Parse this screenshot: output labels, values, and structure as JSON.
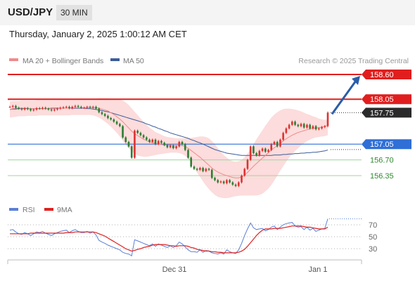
{
  "header": {
    "symbol": "USD/JPY",
    "timeframe": "30 MIN",
    "datetime": "Thursday, January 2, 2025 1:00:12 AM CET"
  },
  "legend": {
    "ma20_label": "MA 20 + Bollinger Bands",
    "ma20_color": "#f08a8a",
    "ma50_label": "MA 50",
    "ma50_color": "#3b5c9a",
    "credit": "Research © 2025 Trading Central"
  },
  "rsi_legend": {
    "rsi_label": "RSI",
    "rsi_color": "#5b7fd6",
    "ma_label": "9MA",
    "ma_color": "#e02020"
  },
  "colors": {
    "resistance": "#e01e1e",
    "support_pivot": "#2f6fd6",
    "support_green": "#2f8a2f",
    "current_price_tag": "#2b2b2b",
    "bull_candle": "#dd3333",
    "bear_candle": "#2e7d32",
    "forecast_arrow": "#2a5da8",
    "band_fill": "#fbd3d3"
  },
  "chart_data": [
    {
      "type": "candlestick",
      "x_ticks": [
        "Dec 31",
        "Jan 1"
      ],
      "ylim": [
        156.06,
        158.84
      ],
      "levels": [
        {
          "value": 158.6,
          "label": "158.60",
          "kind": "resistance"
        },
        {
          "value": 158.05,
          "label": "158.05",
          "kind": "resistance"
        },
        {
          "value": 157.75,
          "label": "157.75",
          "kind": "current"
        },
        {
          "value": 157.05,
          "label": "157.05",
          "kind": "pivot"
        },
        {
          "value": 156.7,
          "label": "156.70",
          "kind": "support"
        },
        {
          "value": 156.35,
          "label": "156.35",
          "kind": "support"
        }
      ],
      "forecast": {
        "from": 157.75,
        "to": 158.6
      },
      "close": [
        157.88,
        157.9,
        157.86,
        157.84,
        157.82,
        157.85,
        157.83,
        157.8,
        157.82,
        157.85,
        157.84,
        157.86,
        157.84,
        157.82,
        157.8,
        157.82,
        157.84,
        157.86,
        157.87,
        157.88,
        157.85,
        157.88,
        157.9,
        157.88,
        157.86,
        157.86,
        157.88,
        157.86,
        157.88,
        157.84,
        157.76,
        157.72,
        157.68,
        157.63,
        157.6,
        157.55,
        157.5,
        157.45,
        157.2,
        157.1,
        157.0,
        156.75,
        157.35,
        157.3,
        157.25,
        157.2,
        157.15,
        157.1,
        157.15,
        157.05,
        157.12,
        157.08,
        157.03,
        156.98,
        157.02,
        156.96,
        157.0,
        157.1,
        157.05,
        156.92,
        156.75,
        156.55,
        156.5,
        156.48,
        156.52,
        156.45,
        156.5,
        156.48,
        156.3,
        156.25,
        156.2,
        156.22,
        156.18,
        156.25,
        156.2,
        156.15,
        156.12,
        156.2,
        156.35,
        156.5,
        156.7,
        157.0,
        156.85,
        156.8,
        156.9,
        156.95,
        156.88,
        156.92,
        157.05,
        157.1,
        157.0,
        157.15,
        157.3,
        157.4,
        157.48,
        157.55,
        157.48,
        157.45,
        157.5,
        157.42,
        157.48,
        157.4,
        157.45,
        157.38,
        157.4,
        157.43,
        157.45,
        157.75
      ],
      "ma20": [
        157.82,
        157.84,
        157.85,
        157.85,
        157.85,
        157.85,
        157.85,
        157.84,
        157.84,
        157.84,
        157.84,
        157.84,
        157.84,
        157.84,
        157.84,
        157.84,
        157.84,
        157.85,
        157.85,
        157.85,
        157.85,
        157.86,
        157.86,
        157.86,
        157.86,
        157.86,
        157.87,
        157.87,
        157.87,
        157.86,
        157.85,
        157.83,
        157.81,
        157.79,
        157.75,
        157.71,
        157.66,
        157.61,
        157.55,
        157.48,
        157.41,
        157.34,
        157.28,
        157.24,
        157.2,
        157.16,
        157.13,
        157.1,
        157.08,
        157.07,
        157.05,
        157.04,
        157.03,
        157.03,
        157.03,
        157.02,
        157.02,
        157.02,
        157.02,
        157.0,
        156.96,
        156.91,
        156.86,
        156.81,
        156.76,
        156.7,
        156.64,
        156.58,
        156.52,
        156.47,
        156.43,
        156.4,
        156.37,
        156.35,
        156.33,
        156.31,
        156.3,
        156.3,
        156.32,
        156.36,
        156.42,
        156.49,
        156.56,
        156.62,
        156.68,
        156.74,
        156.8,
        156.86,
        156.92,
        156.97,
        157.02,
        157.07,
        157.12,
        157.17,
        157.21,
        157.25,
        157.28,
        157.31,
        157.33,
        157.35,
        157.37,
        157.39,
        157.4,
        157.41,
        157.42,
        157.43,
        157.44,
        157.47
      ],
      "ma50": [
        157.82,
        157.83,
        157.83,
        157.84,
        157.84,
        157.84,
        157.84,
        157.84,
        157.84,
        157.84,
        157.84,
        157.84,
        157.84,
        157.84,
        157.85,
        157.85,
        157.85,
        157.85,
        157.85,
        157.85,
        157.85,
        157.85,
        157.85,
        157.85,
        157.85,
        157.85,
        157.84,
        157.84,
        157.83,
        157.82,
        157.81,
        157.8,
        157.78,
        157.77,
        157.75,
        157.73,
        157.71,
        157.69,
        157.67,
        157.65,
        157.63,
        157.61,
        157.59,
        157.57,
        157.55,
        157.53,
        157.5,
        157.48,
        157.45,
        157.43,
        157.4,
        157.38,
        157.35,
        157.33,
        157.3,
        157.28,
        157.26,
        157.24,
        157.22,
        157.2,
        157.18,
        157.15,
        157.13,
        157.1,
        157.08,
        157.05,
        157.02,
        156.99,
        156.96,
        156.93,
        156.91,
        156.89,
        156.87,
        156.85,
        156.84,
        156.83,
        156.82,
        156.81,
        156.8,
        156.8,
        156.8,
        156.8,
        156.8,
        156.8,
        156.8,
        156.8,
        156.8,
        156.8,
        156.8,
        156.81,
        156.81,
        156.81,
        156.82,
        156.82,
        156.83,
        156.83,
        156.84,
        156.84,
        156.85,
        156.85,
        156.86,
        156.86,
        156.87,
        156.87,
        156.88,
        156.89,
        156.9,
        156.92
      ],
      "bb_upper": [
        158.0,
        158.01,
        158.01,
        158.01,
        158.02,
        158.02,
        158.02,
        158.02,
        158.02,
        158.03,
        158.03,
        158.03,
        158.03,
        158.03,
        158.03,
        158.03,
        158.03,
        158.04,
        158.04,
        158.04,
        158.04,
        158.04,
        158.05,
        158.05,
        158.05,
        158.05,
        158.06,
        158.06,
        158.06,
        158.06,
        158.07,
        158.07,
        158.07,
        158.07,
        158.06,
        158.06,
        158.05,
        158.04,
        158.02,
        157.98,
        157.92,
        157.85,
        157.77,
        157.7,
        157.62,
        157.55,
        157.48,
        157.42,
        157.37,
        157.32,
        157.29,
        157.26,
        157.23,
        157.21,
        157.2,
        157.19,
        157.18,
        157.18,
        157.18,
        157.18,
        157.18,
        157.19,
        157.2,
        157.21,
        157.22,
        157.22,
        157.21,
        157.18,
        157.12,
        157.05,
        156.96,
        156.88,
        156.81,
        156.75,
        156.7,
        156.67,
        156.66,
        156.67,
        156.7,
        156.76,
        156.84,
        156.94,
        157.05,
        157.16,
        157.26,
        157.36,
        157.46,
        157.55,
        157.64,
        157.71,
        157.76,
        157.8,
        157.83,
        157.84,
        157.84,
        157.83,
        157.82,
        157.8,
        157.78,
        157.75,
        157.72,
        157.7,
        157.67,
        157.65,
        157.62,
        157.6,
        157.59,
        157.6
      ],
      "bb_lower": [
        157.64,
        157.65,
        157.66,
        157.67,
        157.67,
        157.67,
        157.68,
        157.68,
        157.68,
        157.68,
        157.69,
        157.69,
        157.69,
        157.69,
        157.69,
        157.69,
        157.69,
        157.69,
        157.69,
        157.69,
        157.69,
        157.7,
        157.7,
        157.7,
        157.7,
        157.7,
        157.7,
        157.7,
        157.69,
        157.67,
        157.64,
        157.6,
        157.55,
        157.5,
        157.44,
        157.37,
        157.3,
        157.22,
        157.13,
        157.04,
        156.96,
        156.89,
        156.84,
        156.8,
        156.78,
        156.77,
        156.77,
        156.78,
        156.79,
        156.81,
        156.82,
        156.83,
        156.84,
        156.85,
        156.86,
        156.86,
        156.86,
        156.85,
        156.83,
        156.79,
        156.73,
        156.64,
        156.53,
        156.42,
        156.32,
        156.22,
        156.13,
        156.05,
        155.98,
        155.92,
        155.88,
        155.86,
        155.85,
        155.85,
        155.86,
        155.88,
        155.89,
        155.9,
        155.91,
        155.91,
        155.91,
        155.91,
        155.91,
        155.91,
        155.92,
        155.95,
        156.0,
        156.06,
        156.14,
        156.24,
        156.35,
        156.46,
        156.56,
        156.66,
        156.75,
        156.83,
        156.9,
        156.96,
        157.02,
        157.07,
        157.12,
        157.15,
        157.18,
        157.2,
        157.21,
        157.22,
        157.23,
        157.25
      ]
    },
    {
      "type": "line",
      "name": "RSI",
      "y_ticks": [
        "70",
        "50",
        "30"
      ],
      "ylim": [
        15,
        85
      ],
      "rsi": [
        61,
        62,
        58,
        55,
        54,
        57,
        55,
        52,
        55,
        58,
        57,
        59,
        56,
        54,
        52,
        55,
        57,
        59,
        60,
        61,
        57,
        60,
        62,
        59,
        57,
        57,
        59,
        56,
        58,
        53,
        44,
        41,
        39,
        36,
        34,
        32,
        30,
        28,
        24,
        22,
        21,
        18,
        45,
        43,
        41,
        39,
        37,
        35,
        38,
        34,
        38,
        36,
        34,
        32,
        35,
        32,
        35,
        41,
        38,
        33,
        28,
        25,
        25,
        24,
        28,
        24,
        27,
        26,
        23,
        22,
        21,
        23,
        21,
        28,
        25,
        23,
        22,
        28,
        39,
        52,
        63,
        73,
        65,
        62,
        63,
        64,
        60,
        62,
        66,
        68,
        62,
        66,
        70,
        72,
        73,
        74,
        68,
        66,
        67,
        62,
        66,
        61,
        64,
        59,
        61,
        63,
        64,
        80
      ],
      "ma9": [
        55,
        55,
        55,
        55,
        55,
        55,
        55,
        56,
        56,
        56,
        56,
        56,
        56,
        56,
        56,
        56,
        56,
        56,
        56,
        57,
        57,
        57,
        58,
        58,
        58,
        58,
        58,
        58,
        58,
        57,
        55,
        53,
        51,
        48,
        45,
        42,
        39,
        36,
        33,
        30,
        28,
        26,
        27,
        29,
        30,
        32,
        33,
        34,
        36,
        37,
        37,
        37,
        37,
        36,
        35,
        35,
        34,
        35,
        35,
        35,
        34,
        32,
        31,
        29,
        28,
        27,
        26,
        26,
        25,
        25,
        24,
        24,
        23,
        23,
        23,
        23,
        23,
        24,
        26,
        29,
        34,
        40,
        46,
        52,
        57,
        61,
        63,
        63,
        63,
        64,
        64,
        64,
        65,
        66,
        67,
        68,
        68,
        68,
        68,
        67,
        66,
        66,
        65,
        64,
        63,
        63,
        63,
        66
      ]
    }
  ]
}
